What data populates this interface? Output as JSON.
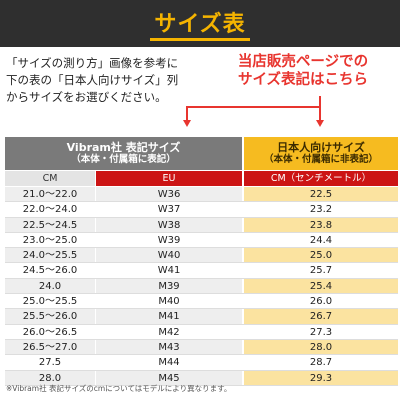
{
  "title": "サイズ表",
  "intro": {
    "line1": "「サイズの測り方」画像を参考に",
    "line2": "下の表の「日本人向けサイズ」列",
    "line3": "からサイズをお選びください。"
  },
  "note": {
    "line1": "当店販売ページでの",
    "line2": "サイズ表記はこちら"
  },
  "header": {
    "left_line1": "Vibram社 表記サイズ",
    "left_line2": "（本体・付属箱に表記）",
    "right_line1": "日本人向けサイズ",
    "right_line2": "（本体・付属箱に非表記）"
  },
  "subheader": {
    "cm": "CM",
    "eu": "EU",
    "jp": "CM（センチメートル）"
  },
  "rows": [
    {
      "cm": "21.0～22.0",
      "eu": "W36",
      "jp": "22.5"
    },
    {
      "cm": "22.0～24.0",
      "eu": "W37",
      "jp": "23.2"
    },
    {
      "cm": "22.5～24.5",
      "eu": "W38",
      "jp": "23.8"
    },
    {
      "cm": "23.0～25.0",
      "eu": "W39",
      "jp": "24.4"
    },
    {
      "cm": "24.0～25.5",
      "eu": "W40",
      "jp": "25.0"
    },
    {
      "cm": "24.5～26.0",
      "eu": "W41",
      "jp": "25.7"
    },
    {
      "cm": "24.0",
      "eu": "M39",
      "jp": "25.4"
    },
    {
      "cm": "25.0～25.5",
      "eu": "M40",
      "jp": "26.0"
    },
    {
      "cm": "25.5～26.0",
      "eu": "M41",
      "jp": "26.7"
    },
    {
      "cm": "26.0～26.5",
      "eu": "M42",
      "jp": "27.3"
    },
    {
      "cm": "26.5～27.0",
      "eu": "M43",
      "jp": "28.0"
    },
    {
      "cm": "27.5",
      "eu": "M44",
      "jp": "28.7"
    },
    {
      "cm": "28.0",
      "eu": "M45",
      "jp": "29.3"
    }
  ],
  "footnote": "※Vibram社 表記サイズのcmについてはモデルにより異なります。",
  "colors": {
    "title_bg": "#2f2f2f",
    "title_text": "#f5b400",
    "accent_red": "#e8352f",
    "header_gray": "#7a7a7a",
    "header_yellow": "#f6bb20",
    "subheader_red": "#cc1414",
    "row_yellow": "#fbe3a0"
  }
}
